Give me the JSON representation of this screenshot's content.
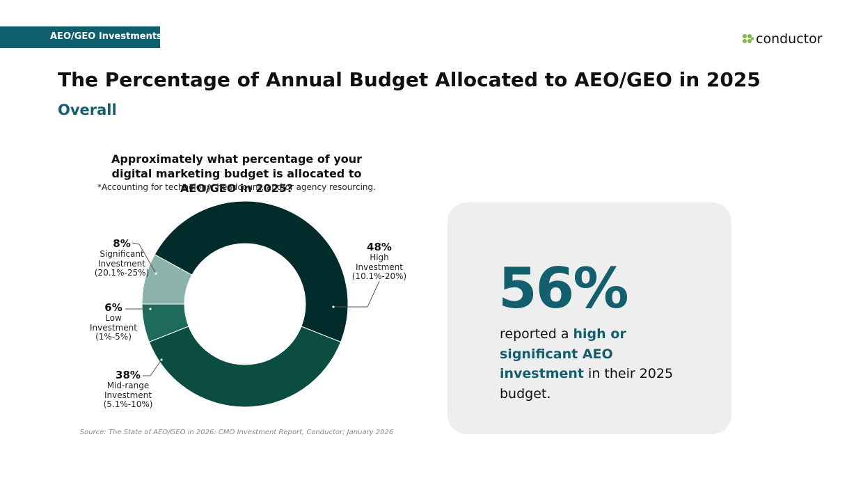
{
  "header": {
    "tag": "AEO/GEO Investments",
    "logo": "conductor",
    "title": "The Percentage of Annual Budget Allocated to AEO/GEO in 2025",
    "subtitle": "Overall"
  },
  "chart_data": {
    "type": "donut",
    "title": "Approximately what percentage of your digital marketing budget is allocated to AEO/GEO in 2025?",
    "subtitle": "*Accounting for technology, headcount, and/or agency resourcing.",
    "categories": [
      "High Investment",
      "Mid-range Investment",
      "Low Investment",
      "Significant Investment"
    ],
    "ranges": [
      "(10.1%-20%)",
      "(5.1%-10%)",
      "(1%-5%)",
      "(20.1%-25%)"
    ],
    "values": [
      48,
      38,
      6,
      8
    ],
    "value_labels": [
      "48%",
      "38%",
      "6%",
      "8%"
    ],
    "colors": [
      "#022b2b",
      "#0b4e41",
      "#1e6b5b",
      "#8bb3a9"
    ],
    "source": "Source: The State of AEO/GEO in 2026: CMO Investment Report, Conductor; January 2026"
  },
  "callout": {
    "value": "56%",
    "text_before": "reported a",
    "highlight": "high or significant AEO investment",
    "text_after": "in their 2025 budget."
  }
}
